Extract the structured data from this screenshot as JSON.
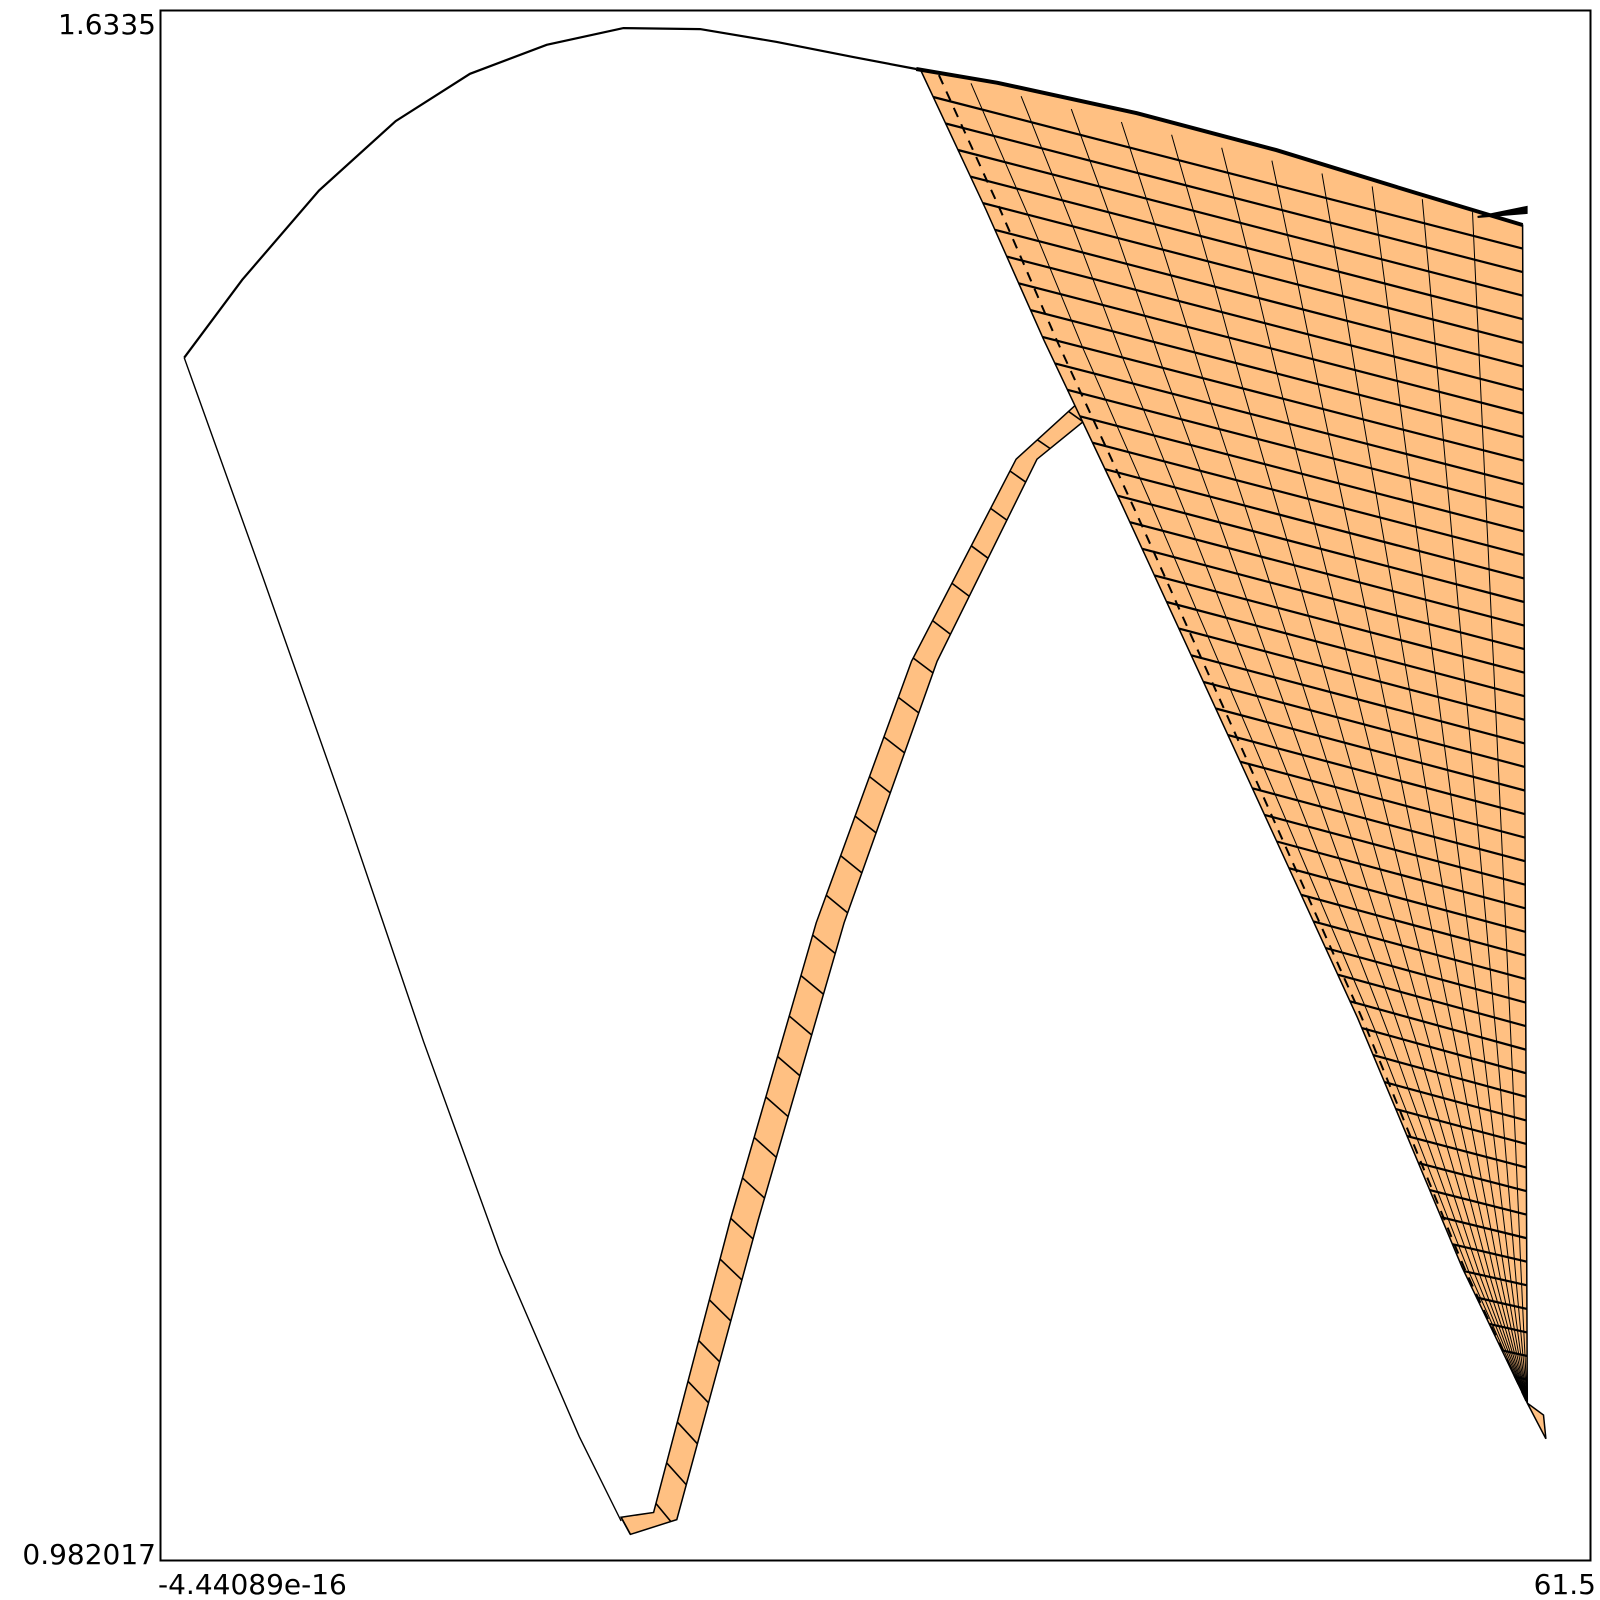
{
  "chart_data": {
    "type": "line",
    "title": "",
    "xlabel": "",
    "ylabel": "",
    "xlim": [
      -4.44089e-16,
      61.5
    ],
    "ylim": [
      0.982017,
      1.6335
    ],
    "x_tick_labels": [
      "-4.44089e-16",
      "61.5"
    ],
    "y_tick_labels": [
      "1.6335",
      "0.982017"
    ],
    "grid": false,
    "legend": "none",
    "colors": {
      "mesh_fill": "#ffc082",
      "line": "#000000",
      "frame": "#000000"
    },
    "outline_curve": {
      "points": [
        [
          1.0,
          1.4877
        ],
        [
          3.5,
          1.5205
        ],
        [
          6.8,
          1.558
        ],
        [
          10.1,
          1.5872
        ],
        [
          13.3,
          1.6071
        ],
        [
          16.6,
          1.6193
        ],
        [
          19.9,
          1.6263
        ],
        [
          23.2,
          1.6259
        ],
        [
          26.5,
          1.6205
        ],
        [
          29.8,
          1.6141
        ],
        [
          32.5,
          1.6091
        ]
      ]
    },
    "left_boundary": {
      "points": [
        [
          1.0,
          1.4877
        ],
        [
          4.4,
          1.395
        ],
        [
          8.0,
          1.295
        ],
        [
          11.3,
          1.2
        ],
        [
          14.6,
          1.111
        ],
        [
          18.0,
          1.034
        ],
        [
          19.8,
          0.9984
        ]
      ]
    },
    "lower_strip": {
      "outer": [
        [
          19.8,
          1.0
        ],
        [
          21.2,
          1.002
        ],
        [
          24.5,
          1.125
        ],
        [
          28.2,
          1.25
        ],
        [
          32.3,
          1.36
        ],
        [
          36.8,
          1.445
        ],
        [
          40.4,
          1.477
        ]
      ],
      "inner": [
        [
          20.2,
          0.9928
        ],
        [
          22.2,
          0.999
        ],
        [
          25.7,
          1.125
        ],
        [
          29.4,
          1.25
        ],
        [
          33.4,
          1.36
        ],
        [
          37.7,
          1.445
        ],
        [
          41.1,
          1.472
        ]
      ],
      "cross_lines": 30
    },
    "upper_mesh": {
      "top_edge": [
        [
          32.5,
          1.6091
        ],
        [
          36.0,
          1.6033
        ],
        [
          42.0,
          1.5905
        ],
        [
          48.0,
          1.575
        ],
        [
          54.0,
          1.557
        ],
        [
          58.6,
          1.5435
        ]
      ],
      "left_edge": [
        [
          32.7,
          1.6085
        ],
        [
          35.5,
          1.55
        ],
        [
          38.0,
          1.495
        ],
        [
          41.3,
          1.427
        ],
        [
          46.2,
          1.323
        ],
        [
          51.5,
          1.21
        ],
        [
          56.0,
          1.105
        ],
        [
          58.8,
          1.048
        ]
      ],
      "right_edge": [
        [
          58.6,
          1.5435
        ],
        [
          58.8,
          1.048
        ]
      ],
      "tail": [
        [
          58.8,
          1.048
        ],
        [
          59.6,
          1.033
        ],
        [
          59.5,
          1.043
        ]
      ],
      "rows": 50,
      "columns": 12
    }
  }
}
